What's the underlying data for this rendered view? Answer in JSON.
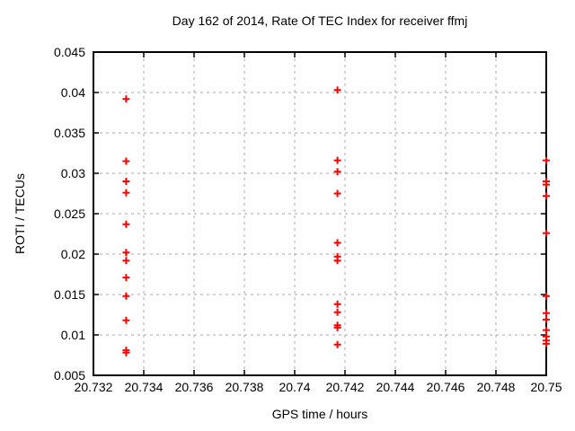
{
  "figure": {
    "background": "#ffffff"
  },
  "chart_data": {
    "type": "scatter",
    "title": "Day 162 of 2014, Rate Of TEC Index for receiver ffmj",
    "xlabel": "GPS time / hours",
    "ylabel": "ROTI / TECUs",
    "xlim": [
      20.732,
      20.75
    ],
    "ylim": [
      0.005,
      0.045
    ],
    "grid": true,
    "legend_position": "none",
    "marker": "plus",
    "colors": {
      "marker": "#ff0000",
      "grid": "#a8a8a8",
      "axis": "#000000",
      "text": "#000000"
    },
    "xticks": [
      {
        "v": 20.732,
        "label": "20.732"
      },
      {
        "v": 20.734,
        "label": "20.734"
      },
      {
        "v": 20.736,
        "label": "20.736"
      },
      {
        "v": 20.738,
        "label": "20.738"
      },
      {
        "v": 20.74,
        "label": "20.74"
      },
      {
        "v": 20.742,
        "label": "20.742"
      },
      {
        "v": 20.744,
        "label": "20.744"
      },
      {
        "v": 20.746,
        "label": "20.746"
      },
      {
        "v": 20.748,
        "label": "20.748"
      },
      {
        "v": 20.75,
        "label": "20.75"
      }
    ],
    "yticks": [
      {
        "v": 0.005,
        "label": "0.005"
      },
      {
        "v": 0.01,
        "label": "0.01"
      },
      {
        "v": 0.015,
        "label": "0.015"
      },
      {
        "v": 0.02,
        "label": "0.02"
      },
      {
        "v": 0.025,
        "label": "0.025"
      },
      {
        "v": 0.03,
        "label": "0.03"
      },
      {
        "v": 0.035,
        "label": "0.035"
      },
      {
        "v": 0.04,
        "label": "0.04"
      },
      {
        "v": 0.045,
        "label": "0.045"
      }
    ],
    "series": [
      {
        "points": [
          [
            20.7333,
            0.0392
          ],
          [
            20.7333,
            0.0315
          ],
          [
            20.7333,
            0.029
          ],
          [
            20.7333,
            0.0276
          ],
          [
            20.7333,
            0.0237
          ],
          [
            20.7333,
            0.0202
          ],
          [
            20.7333,
            0.0192
          ],
          [
            20.7333,
            0.0171
          ],
          [
            20.7333,
            0.0148
          ],
          [
            20.7333,
            0.0118
          ],
          [
            20.7333,
            0.0081
          ],
          [
            20.7333,
            0.0078
          ],
          [
            20.7417,
            0.0403
          ],
          [
            20.7417,
            0.0316
          ],
          [
            20.7417,
            0.0302
          ],
          [
            20.7417,
            0.0275
          ],
          [
            20.7417,
            0.0214
          ],
          [
            20.7417,
            0.0197
          ],
          [
            20.7417,
            0.0192
          ],
          [
            20.7417,
            0.0138
          ],
          [
            20.7417,
            0.0128
          ],
          [
            20.7417,
            0.0112
          ],
          [
            20.7417,
            0.0109
          ],
          [
            20.7417,
            0.0088
          ],
          [
            20.75,
            0.0316
          ],
          [
            20.75,
            0.029
          ],
          [
            20.75,
            0.0286
          ],
          [
            20.75,
            0.0272
          ],
          [
            20.75,
            0.0226
          ],
          [
            20.75,
            0.0148
          ],
          [
            20.75,
            0.0127
          ],
          [
            20.75,
            0.0119
          ],
          [
            20.75,
            0.0106
          ],
          [
            20.75,
            0.0098
          ],
          [
            20.75,
            0.0093
          ],
          [
            20.75,
            0.0089
          ]
        ]
      }
    ]
  }
}
